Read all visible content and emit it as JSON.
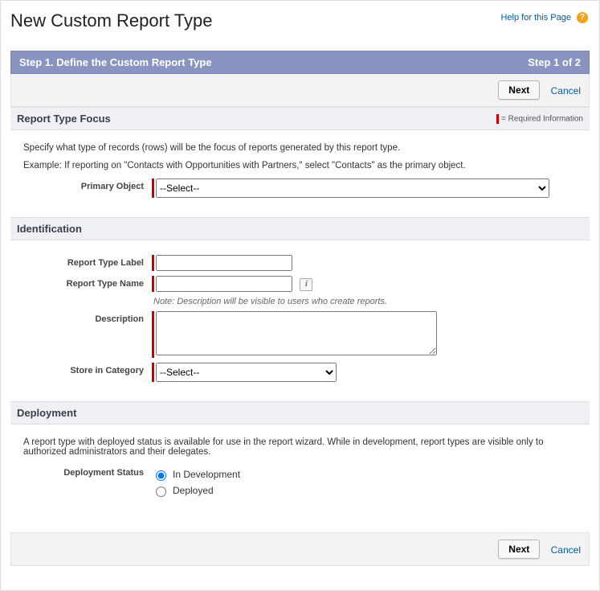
{
  "help": {
    "link_text": "Help for this Page"
  },
  "page_title": "New Custom Report Type",
  "step_bar": {
    "left": "Step 1. Define the Custom Report Type",
    "right": "Step 1 of 2"
  },
  "nav": {
    "next": "Next",
    "cancel": "Cancel"
  },
  "required_legend": "= Required Information",
  "sections": {
    "focus": {
      "title": "Report Type Focus",
      "para1": "Specify what type of records (rows) will be the focus of reports generated by this report type.",
      "para2": "Example: If reporting on \"Contacts with Opportunities with Partners,\" select \"Contacts\" as the primary object.",
      "primary_object_label": "Primary Object",
      "primary_object_value": "--Select--"
    },
    "identification": {
      "title": "Identification",
      "label_label": "Report Type Label",
      "label_value": "",
      "name_label": "Report Type Name",
      "name_value": "",
      "note": "Note: Description will be visible to users who create reports.",
      "description_label": "Description",
      "description_value": "",
      "category_label": "Store in Category",
      "category_value": "--Select--"
    },
    "deployment": {
      "title": "Deployment",
      "para": "A report type with deployed status is available for use in the report wizard. While in development, report types are visible only to authorized administrators and their delegates.",
      "status_label": "Deployment Status",
      "option1": "In Development",
      "option2": "Deployed",
      "selected": "In Development"
    }
  }
}
